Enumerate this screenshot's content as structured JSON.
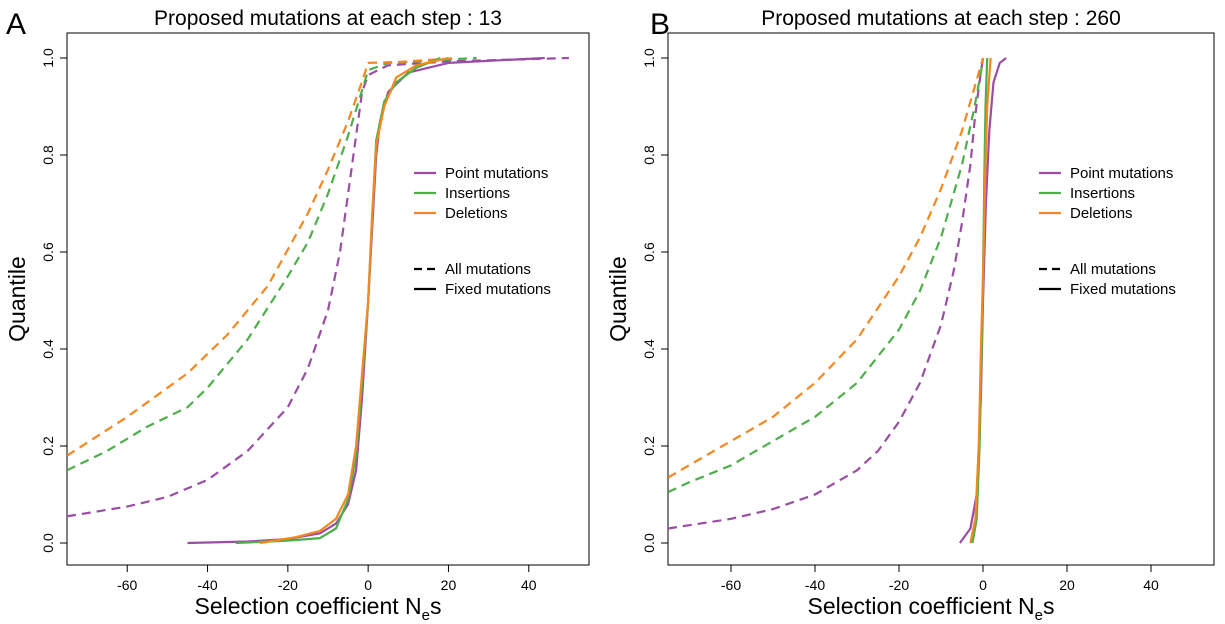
{
  "colors": {
    "Point mutations": "#9B4DA6",
    "Insertions": "#4DAF4A",
    "Deletions": "#F58720"
  },
  "legend": {
    "types": [
      "Point mutations",
      "Insertions",
      "Deletions"
    ],
    "styles": [
      "All mutations",
      "Fixed mutations"
    ],
    "placement": "right"
  },
  "chart_data": [
    {
      "type": "line",
      "panel_label": "A",
      "title": "Proposed mutations at each step : 13",
      "xlabel": "Selection coefficient N",
      "xlabel_sub": "e",
      "xlabel_tail": "s",
      "ylabel": "Quantile",
      "xlim": [
        -75,
        55
      ],
      "ylim": [
        0,
        1
      ],
      "xticks": [
        -60,
        -40,
        -20,
        0,
        20,
        40
      ],
      "yticks": [
        "0.0",
        "0.2",
        "0.4",
        "0.6",
        "0.8",
        "1.0"
      ],
      "series": [
        {
          "name": "Point mutations",
          "style": "All mutations",
          "points": [
            [
              -75,
              0.055
            ],
            [
              -60,
              0.075
            ],
            [
              -50,
              0.095
            ],
            [
              -40,
              0.13
            ],
            [
              -30,
              0.19
            ],
            [
              -20,
              0.28
            ],
            [
              -15,
              0.36
            ],
            [
              -10,
              0.48
            ],
            [
              -7,
              0.6
            ],
            [
              -5,
              0.72
            ],
            [
              -3,
              0.84
            ],
            [
              -1.5,
              0.93
            ],
            [
              0,
              0.965
            ],
            [
              5,
              0.985
            ],
            [
              20,
              0.993
            ],
            [
              50,
              1.0
            ]
          ]
        },
        {
          "name": "Insertions",
          "style": "All mutations",
          "points": [
            [
              -75,
              0.15
            ],
            [
              -65,
              0.19
            ],
            [
              -55,
              0.24
            ],
            [
              -45,
              0.28
            ],
            [
              -40,
              0.32
            ],
            [
              -30,
              0.42
            ],
            [
              -20,
              0.55
            ],
            [
              -15,
              0.62
            ],
            [
              -10,
              0.72
            ],
            [
              -5,
              0.84
            ],
            [
              -2,
              0.92
            ],
            [
              0,
              0.975
            ],
            [
              5,
              0.99
            ],
            [
              27,
              1.0
            ]
          ]
        },
        {
          "name": "Deletions",
          "style": "All mutations",
          "points": [
            [
              -75,
              0.18
            ],
            [
              -60,
              0.26
            ],
            [
              -45,
              0.35
            ],
            [
              -35,
              0.43
            ],
            [
              -25,
              0.53
            ],
            [
              -15,
              0.68
            ],
            [
              -10,
              0.77
            ],
            [
              -5,
              0.87
            ],
            [
              -2,
              0.94
            ],
            [
              0,
              0.99
            ],
            [
              8,
              0.992
            ],
            [
              22,
              1.0
            ]
          ]
        },
        {
          "name": "Point mutations",
          "style": "Fixed mutations",
          "points": [
            [
              -45,
              0.0
            ],
            [
              -30,
              0.003
            ],
            [
              -20,
              0.008
            ],
            [
              -12,
              0.02
            ],
            [
              -8,
              0.04
            ],
            [
              -5,
              0.08
            ],
            [
              -3,
              0.15
            ],
            [
              -1.5,
              0.3
            ],
            [
              0,
              0.5
            ],
            [
              1,
              0.65
            ],
            [
              2,
              0.8
            ],
            [
              3,
              0.87
            ],
            [
              5,
              0.93
            ],
            [
              10,
              0.97
            ],
            [
              20,
              0.99
            ],
            [
              44,
              1.0
            ]
          ]
        },
        {
          "name": "Insertions",
          "style": "Fixed mutations",
          "points": [
            [
              -33,
              0.0
            ],
            [
              -20,
              0.005
            ],
            [
              -12,
              0.01
            ],
            [
              -8,
              0.03
            ],
            [
              -5,
              0.09
            ],
            [
              -3,
              0.18
            ],
            [
              -1.5,
              0.33
            ],
            [
              0,
              0.5
            ],
            [
              1,
              0.67
            ],
            [
              2,
              0.83
            ],
            [
              4,
              0.91
            ],
            [
              7,
              0.95
            ],
            [
              12,
              0.98
            ],
            [
              18,
              1.0
            ]
          ]
        },
        {
          "name": "Deletions",
          "style": "Fixed mutations",
          "points": [
            [
              -27,
              0.0
            ],
            [
              -18,
              0.012
            ],
            [
              -12,
              0.025
            ],
            [
              -8,
              0.05
            ],
            [
              -5,
              0.1
            ],
            [
              -3,
              0.2
            ],
            [
              -1.5,
              0.35
            ],
            [
              0,
              0.5
            ],
            [
              1,
              0.68
            ],
            [
              2,
              0.82
            ],
            [
              4,
              0.9
            ],
            [
              7,
              0.96
            ],
            [
              12,
              0.985
            ],
            [
              20,
              1.0
            ]
          ]
        }
      ]
    },
    {
      "type": "line",
      "panel_label": "B",
      "title": "Proposed mutations at each step : 260",
      "xlabel": "Selection coefficient N",
      "xlabel_sub": "e",
      "xlabel_tail": "s",
      "ylabel": "Quantile",
      "xlim": [
        -75,
        55
      ],
      "ylim": [
        0,
        1
      ],
      "xticks": [
        -60,
        -40,
        -20,
        0,
        20,
        40
      ],
      "yticks": [
        "0.0",
        "0.2",
        "0.4",
        "0.6",
        "0.8",
        "1.0"
      ],
      "series": [
        {
          "name": "Point mutations",
          "style": "All mutations",
          "points": [
            [
              -75,
              0.03
            ],
            [
              -60,
              0.05
            ],
            [
              -50,
              0.07
            ],
            [
              -40,
              0.1
            ],
            [
              -30,
              0.15
            ],
            [
              -25,
              0.19
            ],
            [
              -20,
              0.25
            ],
            [
              -15,
              0.33
            ],
            [
              -10,
              0.45
            ],
            [
              -7,
              0.56
            ],
            [
              -5,
              0.66
            ],
            [
              -3,
              0.78
            ],
            [
              -2,
              0.87
            ],
            [
              -1,
              0.94
            ],
            [
              0,
              1.0
            ]
          ]
        },
        {
          "name": "Insertions",
          "style": "All mutations",
          "points": [
            [
              -75,
              0.105
            ],
            [
              -70,
              0.125
            ],
            [
              -60,
              0.16
            ],
            [
              -50,
              0.21
            ],
            [
              -40,
              0.26
            ],
            [
              -30,
              0.33
            ],
            [
              -20,
              0.44
            ],
            [
              -15,
              0.52
            ],
            [
              -10,
              0.63
            ],
            [
              -5,
              0.78
            ],
            [
              -2,
              0.9
            ],
            [
              -0.5,
              0.97
            ],
            [
              0,
              1.0
            ]
          ]
        },
        {
          "name": "Deletions",
          "style": "All mutations",
          "points": [
            [
              -75,
              0.135
            ],
            [
              -60,
              0.21
            ],
            [
              -50,
              0.26
            ],
            [
              -40,
              0.33
            ],
            [
              -30,
              0.42
            ],
            [
              -20,
              0.55
            ],
            [
              -15,
              0.63
            ],
            [
              -10,
              0.73
            ],
            [
              -5,
              0.85
            ],
            [
              -2,
              0.94
            ],
            [
              0,
              1.0
            ]
          ]
        },
        {
          "name": "Point mutations",
          "style": "Fixed mutations",
          "points": [
            [
              -5.5,
              0.0
            ],
            [
              -3,
              0.03
            ],
            [
              -1.5,
              0.1
            ],
            [
              -0.5,
              0.3
            ],
            [
              0,
              0.5
            ],
            [
              0.7,
              0.7
            ],
            [
              1.5,
              0.85
            ],
            [
              2.5,
              0.95
            ],
            [
              4,
              0.99
            ],
            [
              5.5,
              1.0
            ]
          ]
        },
        {
          "name": "Insertions",
          "style": "Fixed mutations",
          "points": [
            [
              -2.5,
              0.0
            ],
            [
              -1.5,
              0.05
            ],
            [
              -0.8,
              0.2
            ],
            [
              -0.3,
              0.4
            ],
            [
              0,
              0.55
            ],
            [
              0.3,
              0.75
            ],
            [
              0.6,
              0.9
            ],
            [
              1,
              1.0
            ]
          ]
        },
        {
          "name": "Deletions",
          "style": "Fixed mutations",
          "points": [
            [
              -3,
              0.0
            ],
            [
              -1.8,
              0.05
            ],
            [
              -1,
              0.2
            ],
            [
              -0.5,
              0.4
            ],
            [
              0,
              0.55
            ],
            [
              0.5,
              0.75
            ],
            [
              1,
              0.9
            ],
            [
              1.8,
              1.0
            ]
          ]
        }
      ]
    }
  ]
}
